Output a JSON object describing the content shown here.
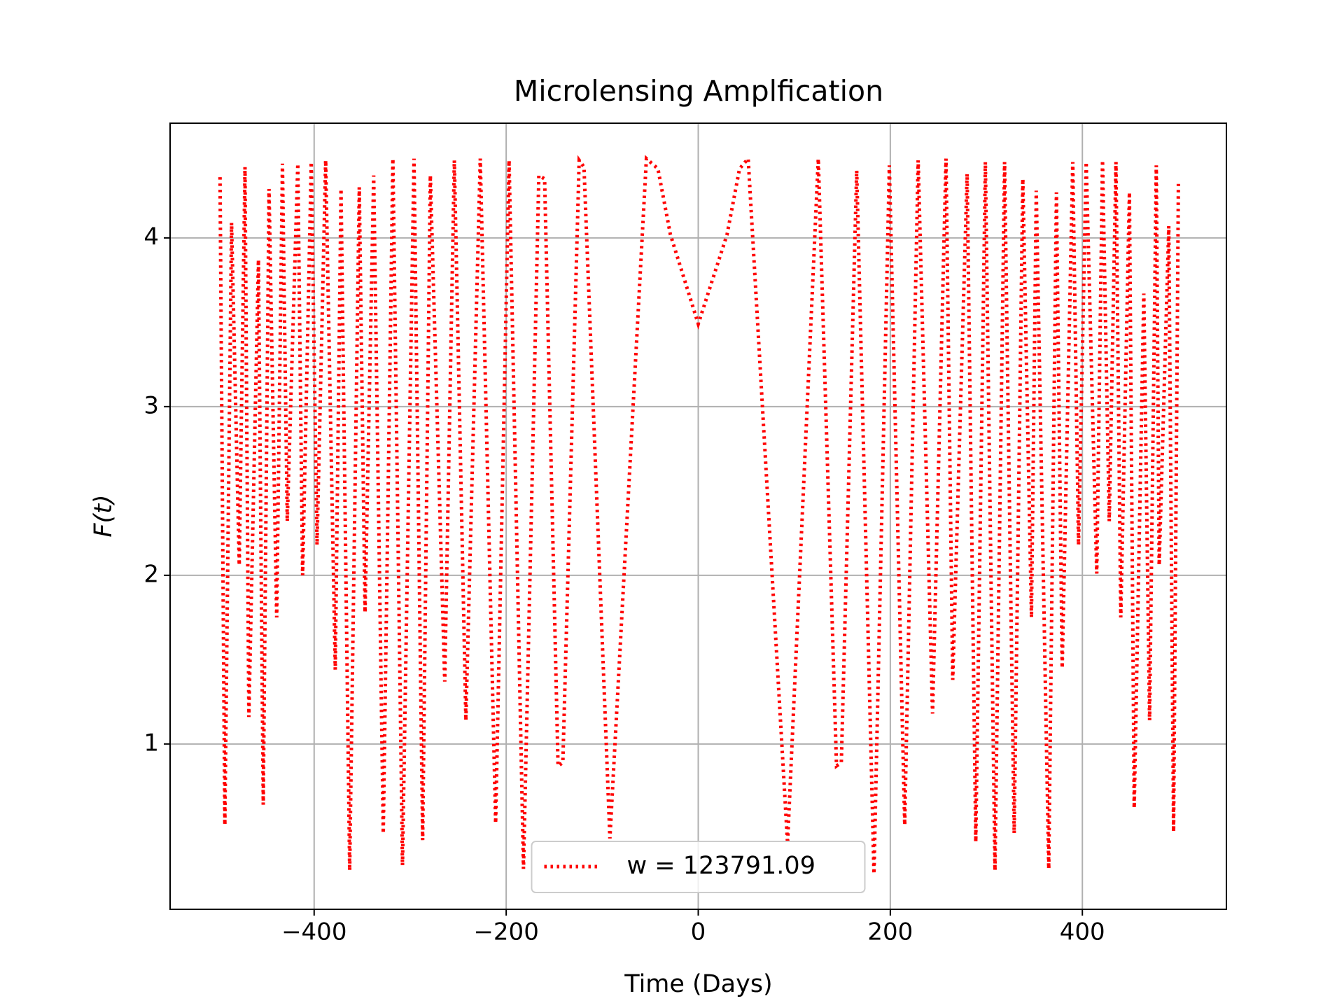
{
  "chart_data": {
    "type": "line",
    "title": "Microlensing Amplfication",
    "xlabel": "Time (Days)",
    "ylabel": "F(t)",
    "x": [
      -498,
      -493,
      -486,
      -478,
      -472,
      -468,
      -458,
      -453,
      -447,
      -439,
      -433,
      -428,
      -417,
      -412,
      -403,
      -397,
      -388,
      -378,
      -372,
      -363,
      -353,
      -347,
      -338,
      -328,
      -318,
      -308,
      -296,
      -287,
      -279,
      -264,
      -254,
      -242,
      -227,
      -211,
      -197,
      -182,
      -166,
      -160,
      -146,
      -141,
      -124,
      -119,
      -92,
      -54,
      -42,
      -29,
      0,
      30,
      43,
      52,
      93,
      125,
      144,
      149,
      165,
      183,
      199,
      215,
      229,
      244,
      258,
      265,
      280,
      289,
      299,
      309,
      319,
      329,
      338,
      347,
      352,
      365,
      373,
      379,
      390,
      396,
      404,
      415,
      421,
      428,
      435,
      440,
      449,
      454,
      464,
      470,
      477,
      480,
      490,
      495,
      500
    ],
    "series": [
      {
        "name": "w = 123791.09",
        "color": "#ff0000",
        "values": [
          4.36,
          0.52,
          4.09,
          2.06,
          4.42,
          1.16,
          3.87,
          0.64,
          4.29,
          1.75,
          4.44,
          2.32,
          4.44,
          2.0,
          4.45,
          2.18,
          4.46,
          1.44,
          4.29,
          0.25,
          4.3,
          1.78,
          4.37,
          0.47,
          4.47,
          0.28,
          4.47,
          0.43,
          4.37,
          1.37,
          4.46,
          1.14,
          4.47,
          0.53,
          4.46,
          0.26,
          4.37,
          4.35,
          0.87,
          0.89,
          4.46,
          4.42,
          0.44,
          4.47,
          4.41,
          4.02,
          3.49,
          4.02,
          4.41,
          4.47,
          0.41,
          4.47,
          0.87,
          0.89,
          4.4,
          0.23,
          4.43,
          0.52,
          4.46,
          1.18,
          4.47,
          1.38,
          4.38,
          0.42,
          4.45,
          0.25,
          4.45,
          0.47,
          4.35,
          1.75,
          4.28,
          0.26,
          4.27,
          1.45,
          4.45,
          2.18,
          4.45,
          2.01,
          4.46,
          2.32,
          4.45,
          1.75,
          4.27,
          0.62,
          3.67,
          1.14,
          4.43,
          2.06,
          4.07,
          0.48,
          4.32
        ]
      }
    ],
    "xlim": [
      -550,
      550
    ],
    "ylim": [
      0.02,
      4.68
    ],
    "xticks": [
      {
        "value": -400,
        "label": "−400"
      },
      {
        "value": -200,
        "label": "−200"
      },
      0,
      200,
      400
    ],
    "yticks": [
      1,
      2,
      3,
      4
    ],
    "grid": true,
    "legend": "lower center",
    "line_style": "dotted"
  }
}
